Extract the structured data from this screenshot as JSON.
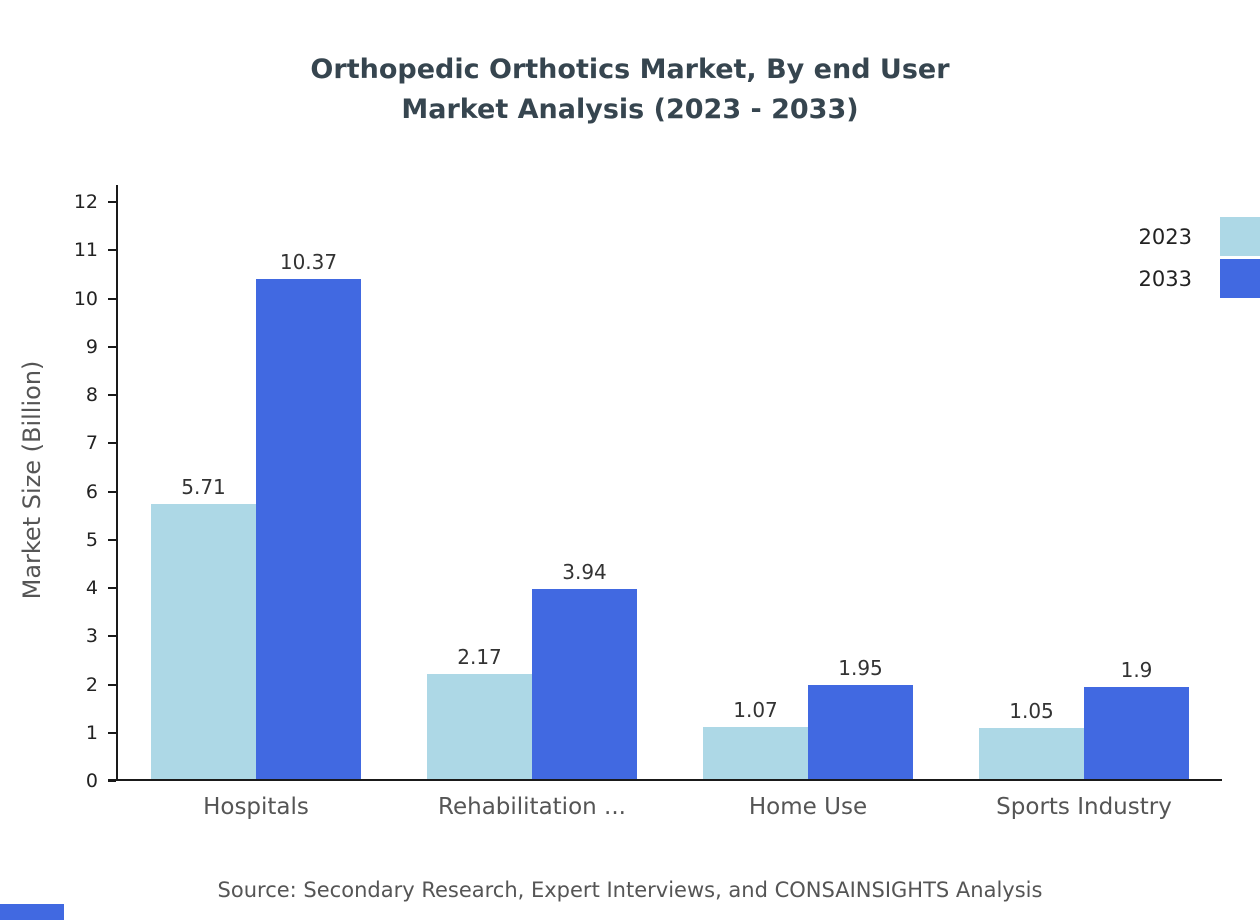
{
  "title": {
    "line1": "Orthopedic Orthotics Market, By end User",
    "line2": "Market Analysis (2023 - 2033)"
  },
  "source": "Source: Secondary Research, Expert Interviews, and CONSAINSIGHTS Analysis",
  "colors": {
    "series_2023": "#add8e6",
    "series_2033": "#4169e1",
    "axis": "#1a1a1a",
    "brand_mark": "#4169e1"
  },
  "chart_data": {
    "type": "bar",
    "title": "Orthopedic Orthotics Market, By end User Market Analysis (2023 - 2033)",
    "categories": [
      "Hospitals",
      "Rehabilitation ...",
      "Home Use",
      "Sports Industry"
    ],
    "series": [
      {
        "name": "2023",
        "color": "#add8e6",
        "values": [
          5.71,
          2.17,
          1.07,
          1.05
        ]
      },
      {
        "name": "2033",
        "color": "#4169e1",
        "values": [
          10.37,
          3.94,
          1.95,
          1.9
        ]
      }
    ],
    "xlabel": "",
    "ylabel": "Market Size (Billion)",
    "ylim": [
      0,
      12
    ],
    "yticks": [
      0,
      1,
      2,
      3,
      4,
      5,
      6,
      7,
      8,
      9,
      10,
      11,
      12
    ],
    "grid": false,
    "legend_position": "top-right"
  }
}
